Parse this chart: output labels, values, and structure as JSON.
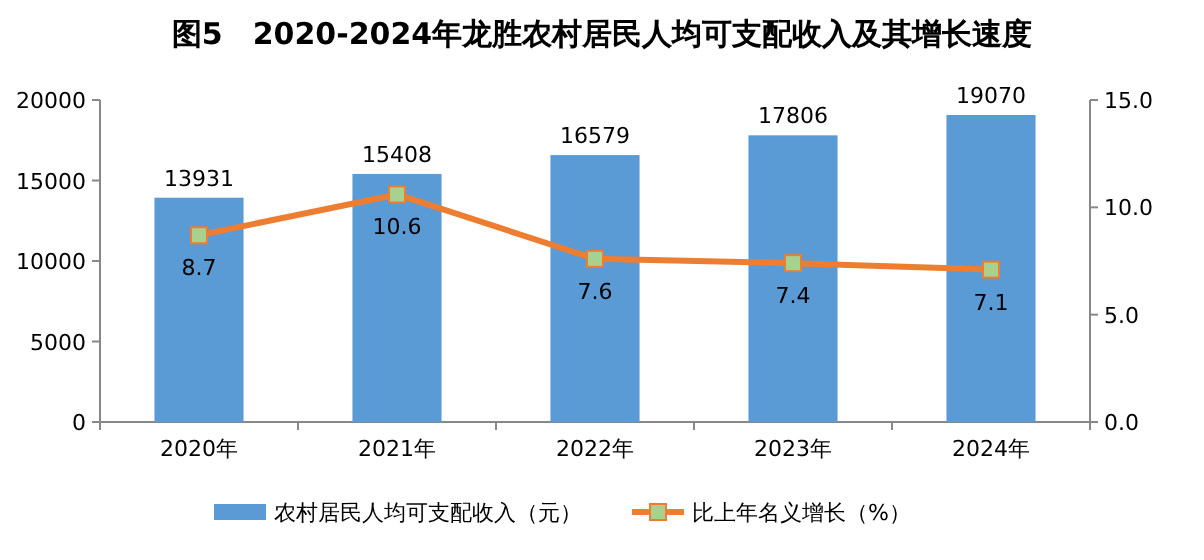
{
  "chart_data": {
    "type": "bar",
    "title": "图5　2020-2024年龙胜农村居民人均可支配收入及其增长速度",
    "categories": [
      "2020年",
      "2021年",
      "2022年",
      "2023年",
      "2024年"
    ],
    "series": [
      {
        "name": "农村居民人均可支配收入（元）",
        "color": "#5b9bd5",
        "values": [
          13931,
          15408,
          16579,
          17806,
          19070
        ]
      },
      {
        "name": "比上年名义增长（%）",
        "type": "line",
        "axis": "y2",
        "color": "#ed7d31",
        "values": [
          8.7,
          10.6,
          7.6,
          7.4,
          7.1
        ]
      }
    ],
    "ylim": [
      0,
      20000
    ],
    "yticks": [
      0,
      5000,
      10000,
      15000,
      20000
    ],
    "y2lim": [
      0,
      15
    ],
    "y2ticks": [
      {
        "value": 0,
        "label": "0.0"
      },
      {
        "value": 5,
        "label": "5.0"
      },
      {
        "value": 10,
        "label": "10.0"
      },
      {
        "value": 15,
        "label": "15.0"
      }
    ],
    "data_labels": true,
    "marker": "square",
    "line_style": "solid",
    "legend": "bottom",
    "grid": false
  }
}
